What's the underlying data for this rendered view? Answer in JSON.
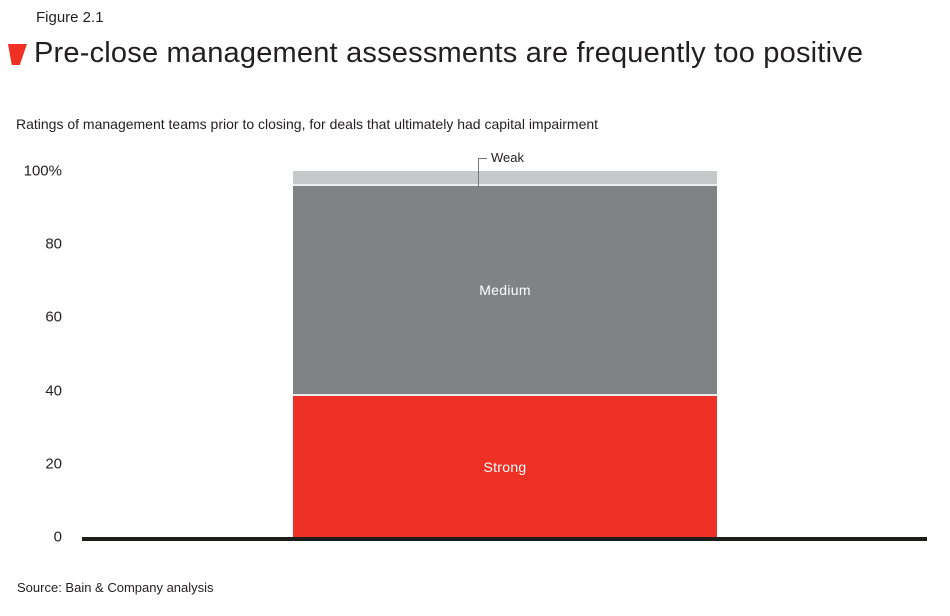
{
  "figure_label": "Figure 2.1",
  "title": "Pre-close management assessments are frequently too positive",
  "subtitle": "Ratings of management teams prior to closing, for deals that ultimately had capital impairment",
  "source": "Source: Bain & Company analysis",
  "annotation": {
    "weak_label": "Weak"
  },
  "colors": {
    "accent_red": "#ee3124",
    "medium_gray": "#808285",
    "light_gray": "#c7c8ca",
    "text": "#231f20",
    "axis_line": "#1d1d1b",
    "segment_label_text": "#ffffff"
  },
  "chart_data": {
    "type": "bar",
    "stacked": true,
    "title": "Pre-close management assessments are frequently too positive",
    "subtitle": "Ratings of management teams prior to closing, for deals that ultimately had capital impairment",
    "categories": [
      "Ratings of management teams prior to closing"
    ],
    "series": [
      {
        "name": "Strong",
        "values": [
          38.5
        ],
        "color": "#ee3124",
        "label_inside": true
      },
      {
        "name": "Medium",
        "values": [
          57.5
        ],
        "color": "#808285",
        "label_inside": true
      },
      {
        "name": "Weak",
        "values": [
          4.0
        ],
        "color": "#c7c8ca",
        "label_inside": false
      }
    ],
    "xlabel": "",
    "ylabel": "",
    "ylim": [
      0,
      100
    ],
    "y_unit": "%",
    "y_ticks": [
      {
        "value": 100,
        "label": "100%"
      },
      {
        "value": 80,
        "label": "80"
      },
      {
        "value": 60,
        "label": "60"
      },
      {
        "value": 40,
        "label": "40"
      },
      {
        "value": 20,
        "label": "20"
      },
      {
        "value": 0,
        "label": "0"
      }
    ],
    "grid": false,
    "legend": "none",
    "annotations": [
      {
        "text": "Weak",
        "points_to": "Weak segment (top of bar)"
      }
    ]
  }
}
